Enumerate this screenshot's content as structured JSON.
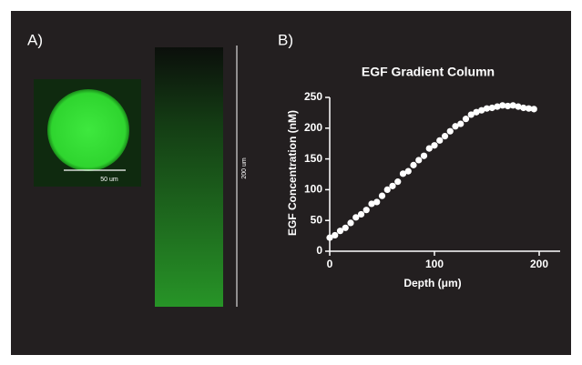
{
  "panel_a": {
    "label": "A)",
    "scale_bar_label": "50 um",
    "column_label": "200 um"
  },
  "panel_b": {
    "label": "B)"
  },
  "chart_data": {
    "type": "scatter",
    "title": "EGF Gradient Column",
    "x_label": "Depth (μm)",
    "y_label": "EGF  Concentration (nM)",
    "x": [
      0,
      5,
      10,
      15,
      20,
      25,
      30,
      35,
      40,
      45,
      50,
      55,
      60,
      65,
      70,
      75,
      80,
      85,
      90,
      95,
      100,
      105,
      110,
      115,
      120,
      125,
      130,
      135,
      140,
      145,
      150,
      155,
      160,
      165,
      170,
      175,
      180,
      185,
      190,
      195
    ],
    "series": [
      {
        "color": "#ffffff",
        "values": [
          22,
          26,
          33,
          38,
          46,
          55,
          60,
          67,
          77,
          80,
          90,
          100,
          106,
          113,
          126,
          130,
          140,
          148,
          155,
          167,
          172,
          180,
          187,
          195,
          203,
          207,
          215,
          222,
          226,
          229,
          232,
          233,
          235,
          237,
          236,
          237,
          235,
          233,
          232,
          231
        ]
      }
    ],
    "xlim": [
      0,
      220
    ],
    "xticks": [
      0,
      100,
      200
    ],
    "ylim": [
      0,
      250
    ],
    "yticks": [
      0,
      50,
      100,
      150,
      200,
      250
    ]
  }
}
